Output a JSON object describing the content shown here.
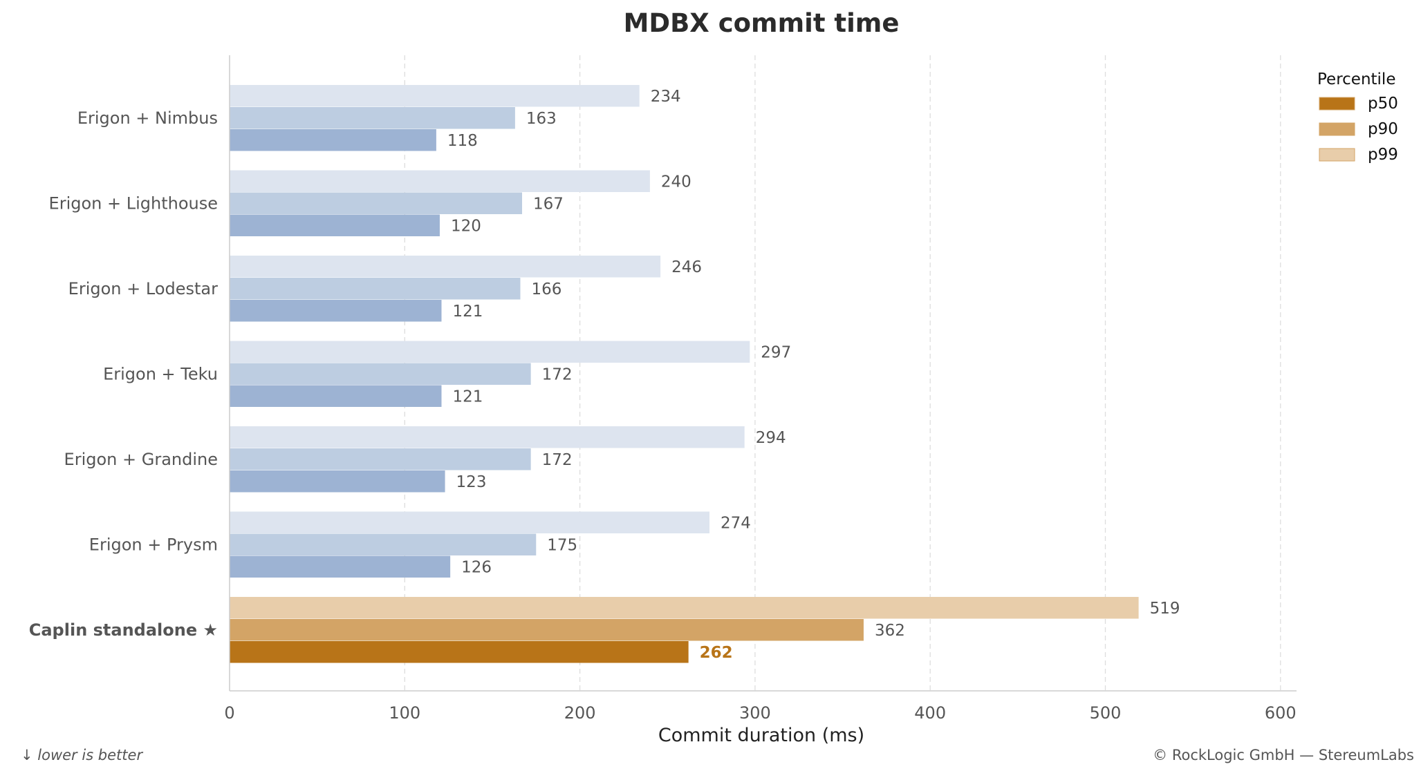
{
  "chart_data": {
    "type": "bar",
    "orientation": "horizontal",
    "title": "MDBX commit time",
    "xlabel": "Commit duration (ms)",
    "ylabel": "",
    "xlim": [
      0,
      620
    ],
    "x_ticks": [
      0,
      100,
      200,
      300,
      400,
      500,
      600
    ],
    "grid": "vertical-dashed",
    "legend_title": "Percentile",
    "legend_position": "top-right",
    "categories": [
      "Erigon + Nimbus",
      "Erigon + Lighthouse",
      "Erigon + Lodestar",
      "Erigon + Teku",
      "Erigon + Grandine",
      "Erigon + Prysm",
      "Caplin standalone  ★"
    ],
    "highlight_category": "Caplin standalone  ★",
    "series": [
      {
        "name": "p99",
        "values": [
          234,
          240,
          246,
          297,
          294,
          274,
          519
        ]
      },
      {
        "name": "p90",
        "values": [
          163,
          167,
          166,
          172,
          172,
          175,
          362
        ]
      },
      {
        "name": "p50",
        "values": [
          118,
          120,
          121,
          121,
          123,
          126,
          262
        ]
      }
    ],
    "legend_order": [
      "p50",
      "p90",
      "p99"
    ],
    "colors": {
      "default": {
        "p99": "#dde4ef",
        "p90": "#bdcde1",
        "p50": "#9db3d3"
      },
      "highlight": {
        "p99": "#e8cdaa",
        "p90": "#d3a466",
        "p50": "#b87418"
      },
      "legend": {
        "p50": "#b87418",
        "p90": "#d3a466",
        "p99": "#e8cdaa"
      }
    }
  },
  "footer": {
    "left_note": "↓ lower is better",
    "right_note": "© RockLogic GmbH — StereumLabs"
  }
}
